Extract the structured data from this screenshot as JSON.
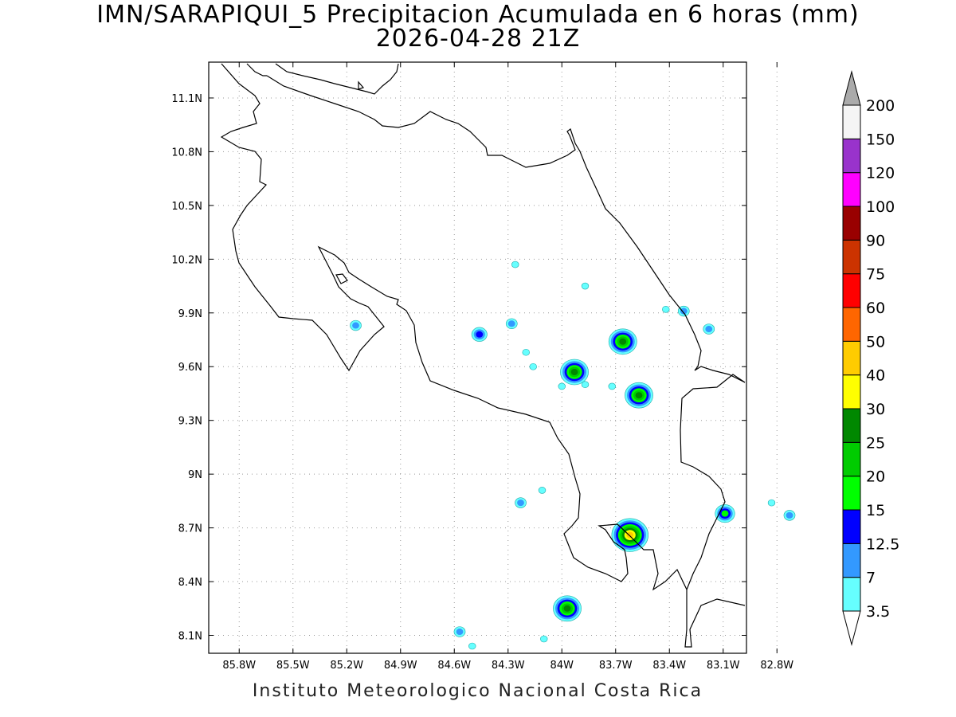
{
  "title": {
    "line1": "IMN/SARAPIQUI_5 Precipitacion Acumulada en 6 horas (mm)",
    "line2": "2026-04-28 21Z"
  },
  "footer": "Instituto Meteorologico Nacional Costa Rica",
  "axes": {
    "x_ticks": [
      "85.8W",
      "85.5W",
      "85.2W",
      "84.9W",
      "84.6W",
      "84.3W",
      "84W",
      "83.7W",
      "83.4W",
      "83.1W",
      "82.8W"
    ],
    "x_values": [
      -85.8,
      -85.5,
      -85.2,
      -84.9,
      -84.6,
      -84.3,
      -84.0,
      -83.7,
      -83.4,
      -83.1,
      -82.8
    ],
    "y_ticks": [
      "11.1N",
      "10.8N",
      "10.5N",
      "10.2N",
      "9.9N",
      "9.6N",
      "9.3N",
      "9N",
      "8.7N",
      "8.4N",
      "8.1N"
    ],
    "y_values": [
      11.1,
      10.8,
      10.5,
      10.2,
      9.9,
      9.6,
      9.3,
      9.0,
      8.7,
      8.4,
      8.1
    ],
    "lon_range": [
      -85.97,
      -82.97
    ],
    "lat_range": [
      8.0,
      11.3
    ],
    "grid": "dotted"
  },
  "legend": {
    "levels": [
      "3.5",
      "7",
      "12.5",
      "15",
      "20",
      "25",
      "30",
      "40",
      "50",
      "60",
      "75",
      "90",
      "100",
      "120",
      "150",
      "200"
    ],
    "colors": [
      "#66ffff",
      "#3399ff",
      "#0000ff",
      "#00ff00",
      "#00cc00",
      "#008800",
      "#ffff00",
      "#ffcc00",
      "#ff6600",
      "#ff0000",
      "#cc3300",
      "#990000",
      "#ff00ff",
      "#9933cc",
      "#f5f5f5",
      "#aaaaaa"
    ]
  },
  "precip_cells": [
    {
      "lon": -83.62,
      "lat": 8.66,
      "max_mm": 40
    },
    {
      "lon": -83.97,
      "lat": 8.25,
      "max_mm": 25
    },
    {
      "lon": -83.09,
      "lat": 8.78,
      "max_mm": 15
    },
    {
      "lon": -83.57,
      "lat": 9.44,
      "max_mm": 25
    },
    {
      "lon": -83.93,
      "lat": 9.57,
      "max_mm": 25
    },
    {
      "lon": -83.66,
      "lat": 9.74,
      "max_mm": 25
    },
    {
      "lon": -84.46,
      "lat": 9.78,
      "max_mm": 12.5
    },
    {
      "lon": -84.28,
      "lat": 9.84,
      "max_mm": 7
    },
    {
      "lon": -85.15,
      "lat": 9.83,
      "max_mm": 7
    },
    {
      "lon": -83.18,
      "lat": 9.81,
      "max_mm": 7
    },
    {
      "lon": -83.32,
      "lat": 9.91,
      "max_mm": 7
    },
    {
      "lon": -84.23,
      "lat": 8.84,
      "max_mm": 7
    },
    {
      "lon": -84.57,
      "lat": 8.12,
      "max_mm": 7
    },
    {
      "lon": -82.73,
      "lat": 8.77,
      "max_mm": 7
    },
    {
      "lon": -84.16,
      "lat": 9.6,
      "max_mm": 3.5
    },
    {
      "lon": -84.2,
      "lat": 9.68,
      "max_mm": 3.5
    },
    {
      "lon": -83.87,
      "lat": 10.05,
      "max_mm": 3.5
    },
    {
      "lon": -84.1,
      "lat": 8.08,
      "max_mm": 3.5
    },
    {
      "lon": -84.5,
      "lat": 8.04,
      "max_mm": 3.5
    },
    {
      "lon": -83.72,
      "lat": 9.49,
      "max_mm": 3.5
    },
    {
      "lon": -84.0,
      "lat": 9.49,
      "max_mm": 3.5
    },
    {
      "lon": -83.87,
      "lat": 9.5,
      "max_mm": 3.5
    },
    {
      "lon": -82.83,
      "lat": 8.84,
      "max_mm": 3.5
    },
    {
      "lon": -83.42,
      "lat": 9.92,
      "max_mm": 3.5
    },
    {
      "lon": -84.11,
      "lat": 8.91,
      "max_mm": 3.5
    },
    {
      "lon": -84.26,
      "lat": 10.17,
      "max_mm": 3.5
    }
  ]
}
